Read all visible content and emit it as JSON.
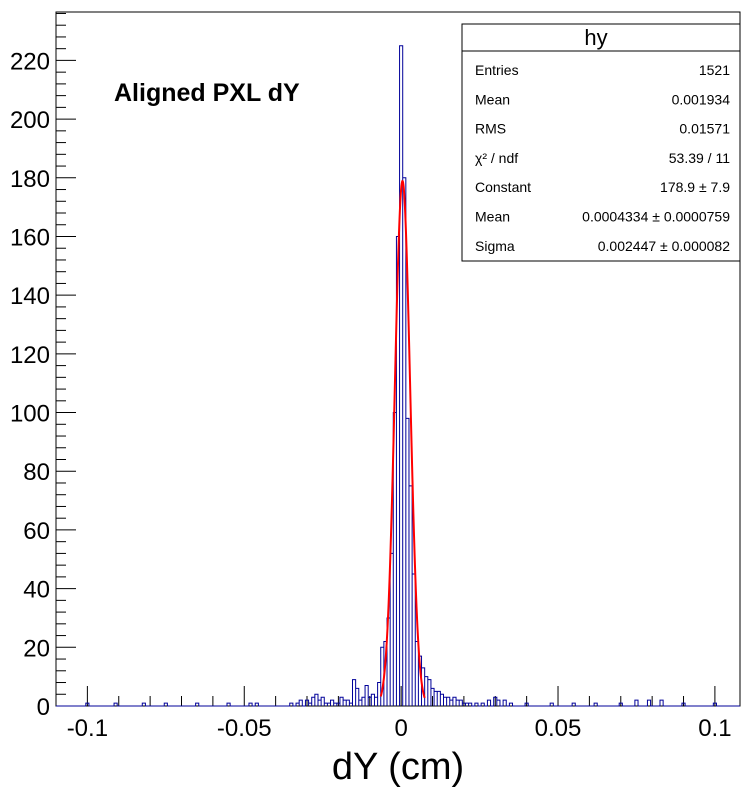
{
  "chart_data": {
    "type": "histogram",
    "title": "Aligned PXL dY",
    "xlabel": "dY (cm)",
    "ylabel": "",
    "xlim": [
      -0.11,
      0.108
    ],
    "ylim": [
      0,
      236.5
    ],
    "x_ticks": [
      -0.1,
      -0.05,
      0,
      0.05,
      0.1
    ],
    "x_tick_labels": [
      "-0.1",
      "-0.05",
      "0",
      "0.05",
      "0.1"
    ],
    "y_ticks": [
      0,
      20,
      40,
      60,
      80,
      100,
      120,
      140,
      160,
      180,
      200,
      220
    ],
    "y_tick_labels": [
      "0",
      "20",
      "40",
      "60",
      "80",
      "100",
      "120",
      "140",
      "160",
      "180",
      "200",
      "220"
    ],
    "histogram_color": "#000099",
    "fit_color": "#ff0000",
    "histogram": {
      "name": "hy",
      "bins": [
        [
          -0.1,
          1
        ],
        [
          -0.091,
          1
        ],
        [
          -0.082,
          1
        ],
        [
          -0.075,
          1
        ],
        [
          -0.065,
          1
        ],
        [
          -0.055,
          1
        ],
        [
          -0.048,
          1
        ],
        [
          -0.046,
          1
        ],
        [
          -0.035,
          1
        ],
        [
          -0.033,
          1
        ],
        [
          -0.032,
          2
        ],
        [
          -0.03,
          2
        ],
        [
          -0.029,
          1
        ],
        [
          -0.028,
          3
        ],
        [
          -0.027,
          4
        ],
        [
          -0.026,
          2
        ],
        [
          -0.025,
          3
        ],
        [
          -0.024,
          1
        ],
        [
          -0.023,
          1
        ],
        [
          -0.022,
          2
        ],
        [
          -0.021,
          1
        ],
        [
          -0.02,
          1
        ],
        [
          -0.019,
          3
        ],
        [
          -0.018,
          2
        ],
        [
          -0.017,
          2
        ],
        [
          -0.016,
          1
        ],
        [
          -0.015,
          9
        ],
        [
          -0.014,
          6
        ],
        [
          -0.013,
          2
        ],
        [
          -0.012,
          3
        ],
        [
          -0.011,
          7
        ],
        [
          -0.01,
          3
        ],
        [
          -0.009,
          4
        ],
        [
          -0.008,
          3
        ],
        [
          -0.007,
          8
        ],
        [
          -0.006,
          20
        ],
        [
          -0.005,
          22
        ],
        [
          -0.004,
          30
        ],
        [
          -0.003,
          52
        ],
        [
          -0.002,
          100
        ],
        [
          -0.001,
          160
        ],
        [
          0,
          225
        ],
        [
          0.001,
          180
        ],
        [
          0.002,
          98
        ],
        [
          0.003,
          75
        ],
        [
          0.004,
          45
        ],
        [
          0.005,
          22
        ],
        [
          0.006,
          17
        ],
        [
          0.007,
          13
        ],
        [
          0.008,
          10
        ],
        [
          0.009,
          9
        ],
        [
          0.01,
          6
        ],
        [
          0.011,
          5
        ],
        [
          0.012,
          5
        ],
        [
          0.013,
          4
        ],
        [
          0.014,
          3
        ],
        [
          0.015,
          3
        ],
        [
          0.016,
          2
        ],
        [
          0.017,
          3
        ],
        [
          0.018,
          2
        ],
        [
          0.019,
          2
        ],
        [
          0.02,
          1
        ],
        [
          0.021,
          1
        ],
        [
          0.022,
          1
        ],
        [
          0.024,
          1
        ],
        [
          0.026,
          1
        ],
        [
          0.028,
          2
        ],
        [
          0.03,
          3
        ],
        [
          0.031,
          2
        ],
        [
          0.033,
          2
        ],
        [
          0.035,
          1
        ],
        [
          0.04,
          1
        ],
        [
          0.048,
          1
        ],
        [
          0.055,
          1
        ],
        [
          0.062,
          1
        ],
        [
          0.07,
          1
        ],
        [
          0.075,
          2
        ],
        [
          0.079,
          2
        ],
        [
          0.083,
          2
        ],
        [
          0.09,
          1
        ],
        [
          0.1,
          1
        ]
      ],
      "bin_width": 0.001
    },
    "fit": {
      "function": "gaus",
      "constant": 178.9,
      "mean": 0.0004334,
      "sigma": 0.002447,
      "range": [
        -0.0065,
        0.0075
      ]
    }
  },
  "stats_box": {
    "title": "hy",
    "rows": [
      {
        "label": "Entries",
        "value": "1521"
      },
      {
        "label": "Mean",
        "value": "0.001934"
      },
      {
        "label": "RMS",
        "value": "0.01571"
      },
      {
        "label": "χ² / ndf",
        "value": "53.39 / 11"
      },
      {
        "label": "Constant",
        "value": "178.9 ± 7.9"
      },
      {
        "label": "Mean",
        "value": "0.0004334 ± 0.0000759"
      },
      {
        "label": "Sigma",
        "value": "0.002447 ± 0.000082"
      }
    ]
  }
}
